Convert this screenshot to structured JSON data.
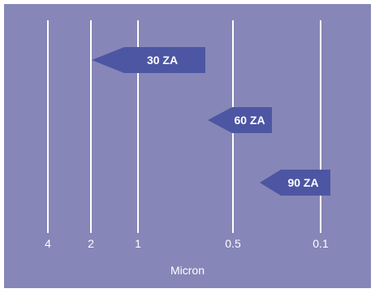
{
  "colors": {
    "panel_background": "#8686b8",
    "arrow_fill": "#4d56a3",
    "gridline": "#ffffff"
  },
  "axis": {
    "title": "Micron",
    "ticks": [
      "4",
      "2",
      "1",
      "0.5",
      "0.1"
    ]
  },
  "arrows": [
    {
      "label": "30 ZA",
      "from": "1",
      "to": "2"
    },
    {
      "label": "60 ZA",
      "from": "0.5",
      "to": "0.5"
    },
    {
      "label": "90 ZA",
      "from": "0.1",
      "to": "0.5"
    }
  ]
}
